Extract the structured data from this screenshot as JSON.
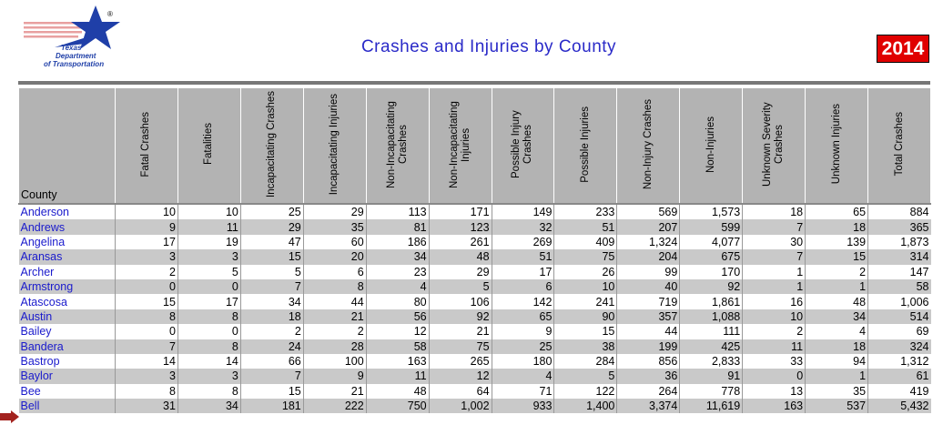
{
  "header": {
    "logo": {
      "line1": "Texas",
      "line2": "Department",
      "line3": "of Transportation",
      "mark": "®"
    },
    "title": "Crashes and Injuries by County",
    "year": "2014"
  },
  "table": {
    "columns": [
      "County",
      "Fatal Crashes",
      "Fatalities",
      "Incapacitating Crashes",
      "Incapacitating Injuries",
      "Non-Incapacitating Crashes",
      "Non-Incapacitating Injuries",
      "Possible Injury Crashes",
      "Possible Injuries",
      "Non-Injury Crashes",
      "Non-Injuries",
      "Unknown Severity Crashes",
      "Unknown  Injuries",
      "Total Crashes"
    ],
    "rows": [
      [
        "Anderson",
        "10",
        "10",
        "25",
        "29",
        "113",
        "171",
        "149",
        "233",
        "569",
        "1,573",
        "18",
        "65",
        "884"
      ],
      [
        "Andrews",
        "9",
        "11",
        "29",
        "35",
        "81",
        "123",
        "32",
        "51",
        "207",
        "599",
        "7",
        "18",
        "365"
      ],
      [
        "Angelina",
        "17",
        "19",
        "47",
        "60",
        "186",
        "261",
        "269",
        "409",
        "1,324",
        "4,077",
        "30",
        "139",
        "1,873"
      ],
      [
        "Aransas",
        "3",
        "3",
        "15",
        "20",
        "34",
        "48",
        "51",
        "75",
        "204",
        "675",
        "7",
        "15",
        "314"
      ],
      [
        "Archer",
        "2",
        "5",
        "5",
        "6",
        "23",
        "29",
        "17",
        "26",
        "99",
        "170",
        "1",
        "2",
        "147"
      ],
      [
        "Armstrong",
        "0",
        "0",
        "7",
        "8",
        "4",
        "5",
        "6",
        "10",
        "40",
        "92",
        "1",
        "1",
        "58"
      ],
      [
        "Atascosa",
        "15",
        "17",
        "34",
        "44",
        "80",
        "106",
        "142",
        "241",
        "719",
        "1,861",
        "16",
        "48",
        "1,006"
      ],
      [
        "Austin",
        "8",
        "8",
        "18",
        "21",
        "56",
        "92",
        "65",
        "90",
        "357",
        "1,088",
        "10",
        "34",
        "514"
      ],
      [
        "Bailey",
        "0",
        "0",
        "2",
        "2",
        "12",
        "21",
        "9",
        "15",
        "44",
        "111",
        "2",
        "4",
        "69"
      ],
      [
        "Bandera",
        "7",
        "8",
        "24",
        "28",
        "58",
        "75",
        "25",
        "38",
        "199",
        "425",
        "11",
        "18",
        "324"
      ],
      [
        "Bastrop",
        "14",
        "14",
        "66",
        "100",
        "163",
        "265",
        "180",
        "284",
        "856",
        "2,833",
        "33",
        "94",
        "1,312"
      ],
      [
        "Baylor",
        "3",
        "3",
        "7",
        "9",
        "11",
        "12",
        "4",
        "5",
        "36",
        "91",
        "0",
        "1",
        "61"
      ],
      [
        "Bee",
        "8",
        "8",
        "15",
        "21",
        "48",
        "64",
        "71",
        "122",
        "264",
        "778",
        "13",
        "35",
        "419"
      ],
      [
        "Bell",
        "31",
        "34",
        "181",
        "222",
        "750",
        "1,002",
        "933",
        "1,400",
        "3,374",
        "11,619",
        "163",
        "537",
        "5,432"
      ]
    ]
  }
}
